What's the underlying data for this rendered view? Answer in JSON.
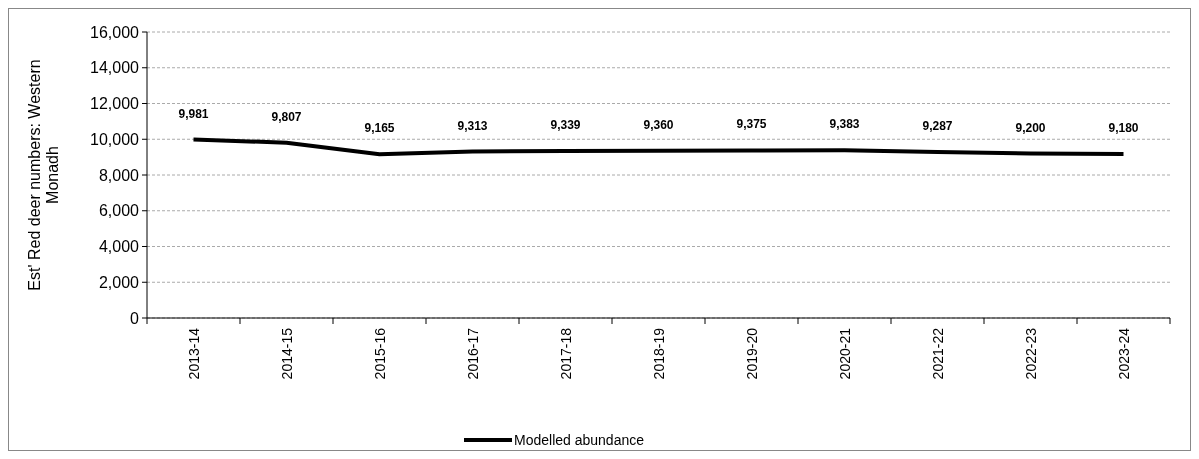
{
  "chart_data": {
    "type": "line",
    "ylabel": "Est' Red deer numbers: Western Monadh",
    "categories": [
      "2013-14",
      "2014-15",
      "2015-16",
      "2016-17",
      "2017-18",
      "2018-19",
      "2019-20",
      "2020-21",
      "2021-22",
      "2022-23",
      "2023-24"
    ],
    "series": [
      {
        "name": "Modelled abundance",
        "color": "#000000",
        "values": [
          9981,
          9807,
          9165,
          9313,
          9339,
          9360,
          9375,
          9383,
          9287,
          9200,
          9180
        ],
        "value_labels": [
          "9,981",
          "9,807",
          "9,165",
          "9,313",
          "9,339",
          "9,360",
          "9,375",
          "9,383",
          "9,287",
          "9,200",
          "9,180"
        ]
      }
    ],
    "ylim": [
      0,
      16000
    ],
    "yticks": [
      {
        "value": 0,
        "label": "0"
      },
      {
        "value": 2000,
        "label": "2,000"
      },
      {
        "value": 4000,
        "label": "4,000"
      },
      {
        "value": 6000,
        "label": "6,000"
      },
      {
        "value": 8000,
        "label": "8,000"
      },
      {
        "value": 10000,
        "label": "10,000"
      },
      {
        "value": 12000,
        "label": "12,000"
      },
      {
        "value": 14000,
        "label": "14,000"
      },
      {
        "value": 16000,
        "label": "16,000"
      }
    ],
    "grid": "y",
    "legend": "bottom",
    "marker": "none",
    "line_style": "solid"
  }
}
